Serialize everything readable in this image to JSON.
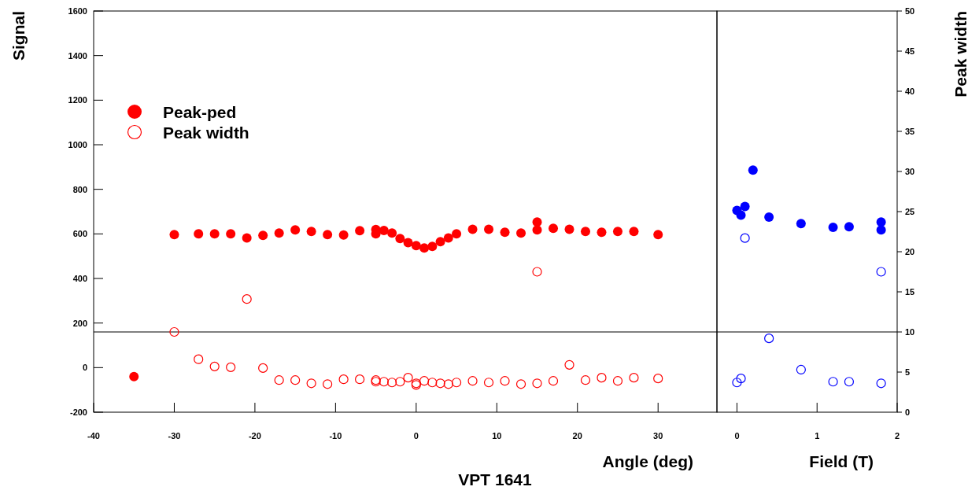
{
  "chart_data": [
    {
      "type": "scatter",
      "title": "VPT 1641",
      "xlabel": "Angle (deg)",
      "ylabel": "Signal",
      "xlim": [
        -40,
        37.3
      ],
      "xticks": [
        -40,
        -30,
        -20,
        -10,
        0,
        10,
        20,
        30
      ],
      "ylim": [
        -200,
        1600
      ],
      "yticks": [
        -200,
        0,
        200,
        400,
        600,
        800,
        1000,
        1200,
        1400,
        1600
      ],
      "y2lim": [
        0,
        50
      ],
      "tick_labels": [
        "x",
        "y"
      ],
      "legend": "top left",
      "ref_lines": [
        {
          "axis": "y2",
          "value": 10,
          "color": "#000000"
        }
      ],
      "series": [
        {
          "name": "Peak-ped",
          "color": "#ff0000",
          "marker": "circle",
          "x": [
            -35,
            -30,
            -27,
            -25,
            -23,
            -21,
            -19,
            -17,
            -15,
            -13,
            -11,
            -9,
            -7,
            -5,
            -5,
            -4,
            -3,
            -2,
            -1,
            0,
            1,
            2,
            3,
            4,
            5,
            7,
            9,
            11,
            13,
            15,
            15,
            17,
            19,
            21,
            23,
            25,
            27,
            30
          ],
          "values": [
            -40,
            597,
            600,
            600,
            600,
            582,
            593,
            604,
            618,
            611,
            597,
            595,
            614,
            620,
            600,
            615,
            604,
            579,
            561,
            547,
            537,
            544,
            565,
            582,
            600,
            621,
            621,
            607,
            604,
            653,
            618,
            625,
            621,
            611,
            607,
            611,
            611,
            597
          ]
        },
        {
          "name": "Peak width",
          "color": "#ff0000",
          "marker": "circle-open",
          "axis": "y2",
          "x": [
            -30,
            -27,
            -25,
            -23,
            -21,
            -19,
            -17,
            -15,
            -13,
            -11,
            -9,
            -7,
            -5,
            -5,
            -4,
            -3,
            -2,
            -1,
            0,
            0,
            1,
            2,
            3,
            4,
            5,
            7,
            9,
            11,
            13,
            15,
            15,
            17,
            19,
            21,
            23,
            25,
            27,
            30
          ],
          "values": [
            10.0,
            6.6,
            5.7,
            5.6,
            14.1,
            5.5,
            4.0,
            4.0,
            3.6,
            3.5,
            4.1,
            4.1,
            4.0,
            3.8,
            3.8,
            3.7,
            3.8,
            4.3,
            3.6,
            3.4,
            3.9,
            3.7,
            3.6,
            3.5,
            3.7,
            3.9,
            3.7,
            3.9,
            3.5,
            3.6,
            17.5,
            3.9,
            5.9,
            4.0,
            4.3,
            3.9,
            4.3,
            4.2
          ]
        }
      ]
    },
    {
      "type": "scatter",
      "xlabel": "Field (T)",
      "y2label": "Peak width",
      "xlim": [
        -0.25,
        2
      ],
      "xticks": [
        0,
        1,
        2
      ],
      "ylim": [
        -200,
        1600
      ],
      "y2lim": [
        0,
        50
      ],
      "y2ticks": [
        0,
        5,
        10,
        15,
        20,
        25,
        30,
        35,
        40,
        45,
        50
      ],
      "tick_labels": [
        "x",
        "y2"
      ],
      "ref_lines": [
        {
          "axis": "y2",
          "value": 10,
          "color": "#000000"
        }
      ],
      "series": [
        {
          "color": "#0000ff",
          "marker": "circle",
          "x": [
            0,
            0.05,
            0.1,
            0.2,
            0.4,
            0.8,
            1.2,
            1.4,
            1.8,
            1.8
          ],
          "values": [
            705,
            684,
            723,
            886,
            675,
            646,
            629,
            632,
            653,
            618
          ]
        },
        {
          "color": "#0000ff",
          "marker": "circle-open",
          "axis": "y2",
          "x": [
            0,
            0.05,
            0.1,
            0.4,
            0.8,
            1.2,
            1.4,
            1.8,
            1.8
          ],
          "values": [
            3.7,
            4.2,
            21.7,
            9.2,
            5.3,
            3.8,
            3.8,
            3.6,
            17.5
          ]
        }
      ]
    }
  ]
}
